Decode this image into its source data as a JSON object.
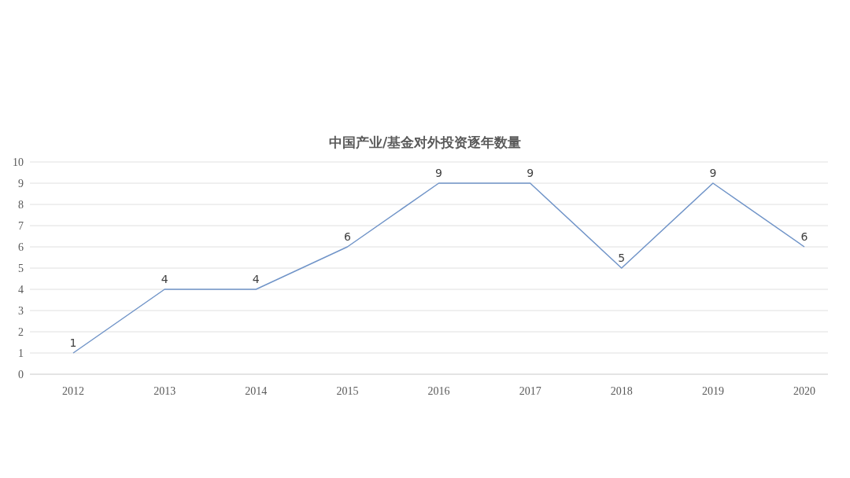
{
  "chart_data": {
    "type": "line",
    "title": "中国产业/基金对外投资逐年数量",
    "categories": [
      "2012",
      "2013",
      "2014",
      "2015",
      "2016",
      "2017",
      "2018",
      "2019",
      "2020"
    ],
    "series": [
      {
        "color": "#7094c8",
        "values": [
          1,
          4,
          4,
          6,
          9,
          9,
          5,
          9,
          6
        ]
      }
    ],
    "ylim": [
      0,
      10
    ],
    "yticks": [
      0,
      1,
      2,
      3,
      4,
      5,
      6,
      7,
      8,
      9,
      10
    ],
    "grid": "y",
    "data_labels": true,
    "marker": "none"
  }
}
